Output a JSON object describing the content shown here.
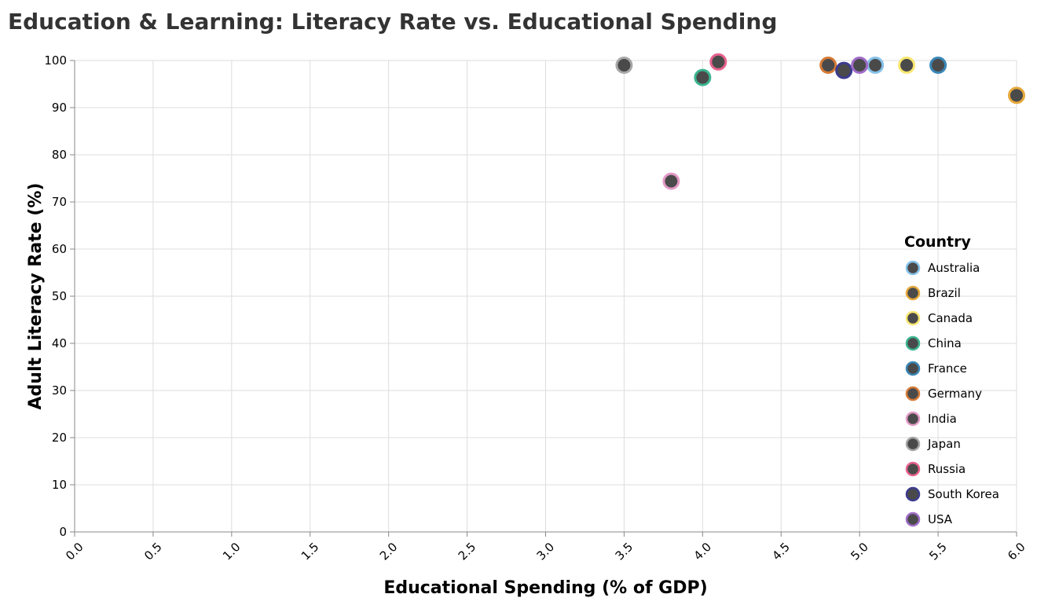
{
  "chart_data": {
    "type": "scatter",
    "title": "Education & Learning: Literacy Rate vs. Educational Spending",
    "xlabel": "Educational Spending (% of GDP)",
    "ylabel": "Adult Literacy Rate (%)",
    "xlim": [
      0,
      6
    ],
    "ylim": [
      0,
      100
    ],
    "x_ticks": [
      "0.0",
      "0.5",
      "1.0",
      "1.5",
      "2.0",
      "2.5",
      "3.0",
      "3.5",
      "4.0",
      "4.5",
      "5.0",
      "5.5",
      "6.0"
    ],
    "y_ticks": [
      "0",
      "10",
      "20",
      "30",
      "40",
      "50",
      "60",
      "70",
      "80",
      "90",
      "100"
    ],
    "grid": true,
    "legend": {
      "title": "Country",
      "placement": "right"
    },
    "marker_fill": "#4a4a4a",
    "series": [
      {
        "name": "Australia",
        "color": "#85c1e9",
        "x": 5.1,
        "y": 99
      },
      {
        "name": "Brazil",
        "color": "#e6a93c",
        "x": 6.0,
        "y": 92.6
      },
      {
        "name": "Canada",
        "color": "#f7e66f",
        "x": 5.3,
        "y": 99
      },
      {
        "name": "China",
        "color": "#3bb58f",
        "x": 4.0,
        "y": 96.4
      },
      {
        "name": "France",
        "color": "#3a87b8",
        "x": 5.5,
        "y": 99
      },
      {
        "name": "Germany",
        "color": "#d67a36",
        "x": 4.8,
        "y": 99
      },
      {
        "name": "India",
        "color": "#e39ac7",
        "x": 3.8,
        "y": 74.4
      },
      {
        "name": "Japan",
        "color": "#a8a8a8",
        "x": 3.5,
        "y": 99
      },
      {
        "name": "Russia",
        "color": "#e8618c",
        "x": 4.1,
        "y": 99.7
      },
      {
        "name": "South Korea",
        "color": "#3b3b8f",
        "x": 4.9,
        "y": 97.9
      },
      {
        "name": "USA",
        "color": "#a06cc9",
        "x": 5.0,
        "y": 99
      }
    ]
  }
}
